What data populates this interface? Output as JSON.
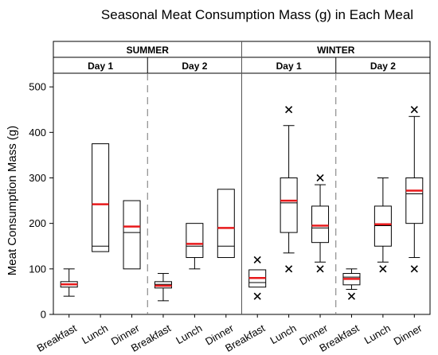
{
  "chart_data": {
    "type": "box",
    "title": "Seasonal Meat Consumption Mass (g) in Each Meal",
    "ylabel": "Meat Consumption Mass (g)",
    "ylim": [
      0,
      530
    ],
    "yticks": [
      0,
      100,
      200,
      300,
      400,
      500
    ],
    "grid": false,
    "median_color": "#e8191b",
    "groups": [
      {
        "season": "SUMMER",
        "days": [
          {
            "label": "Day 1",
            "boxes": [
              {
                "meal": "Breakfast",
                "min": 40,
                "q1": 60,
                "median": 66,
                "q3": 72,
                "max": 100,
                "inner": 66,
                "outliers": []
              },
              {
                "meal": "Lunch",
                "min": 138,
                "q1": 138,
                "median": 242,
                "q3": 375,
                "max": 375,
                "inner": 150,
                "outliers": []
              },
              {
                "meal": "Dinner",
                "min": 100,
                "q1": 100,
                "median": 193,
                "q3": 250,
                "max": 250,
                "inner": 180,
                "outliers": []
              }
            ]
          },
          {
            "label": "Day 2",
            "boxes": [
              {
                "meal": "Breakfast",
                "min": 30,
                "q1": 58,
                "median": 63,
                "q3": 72,
                "max": 90,
                "inner": 66,
                "outliers": []
              },
              {
                "meal": "Lunch",
                "min": 100,
                "q1": 125,
                "median": 155,
                "q3": 200,
                "max": 200,
                "inner": 150,
                "outliers": []
              },
              {
                "meal": "Dinner",
                "min": 125,
                "q1": 125,
                "median": 190,
                "q3": 275,
                "max": 275,
                "inner": 150,
                "outliers": []
              }
            ]
          }
        ]
      },
      {
        "season": "WINTER",
        "days": [
          {
            "label": "Day 1",
            "boxes": [
              {
                "meal": "Breakfast",
                "min": 60,
                "q1": 60,
                "median": 80,
                "q3": 98,
                "max": 98,
                "inner": 70,
                "outliers": [
                  120,
                  40
                ]
              },
              {
                "meal": "Lunch",
                "min": 135,
                "q1": 180,
                "median": 250,
                "q3": 300,
                "max": 415,
                "inner": 245,
                "outliers": [
                  450,
                  100
                ]
              },
              {
                "meal": "Dinner",
                "min": 115,
                "q1": 158,
                "median": 195,
                "q3": 238,
                "max": 285,
                "inner": 190,
                "outliers": [
                  300,
                  100
                ]
              }
            ]
          },
          {
            "label": "Day 2",
            "boxes": [
              {
                "meal": "Breakfast",
                "min": 55,
                "q1": 65,
                "median": 78,
                "q3": 90,
                "max": 100,
                "inner": 82,
                "outliers": [
                  40
                ]
              },
              {
                "meal": "Lunch",
                "min": 115,
                "q1": 150,
                "median": 198,
                "q3": 238,
                "max": 300,
                "inner": 195,
                "outliers": [
                  100
                ]
              },
              {
                "meal": "Dinner",
                "min": 125,
                "q1": 200,
                "median": 272,
                "q3": 300,
                "max": 435,
                "inner": 265,
                "outliers": [
                  450,
                  100
                ]
              }
            ]
          }
        ]
      }
    ]
  }
}
